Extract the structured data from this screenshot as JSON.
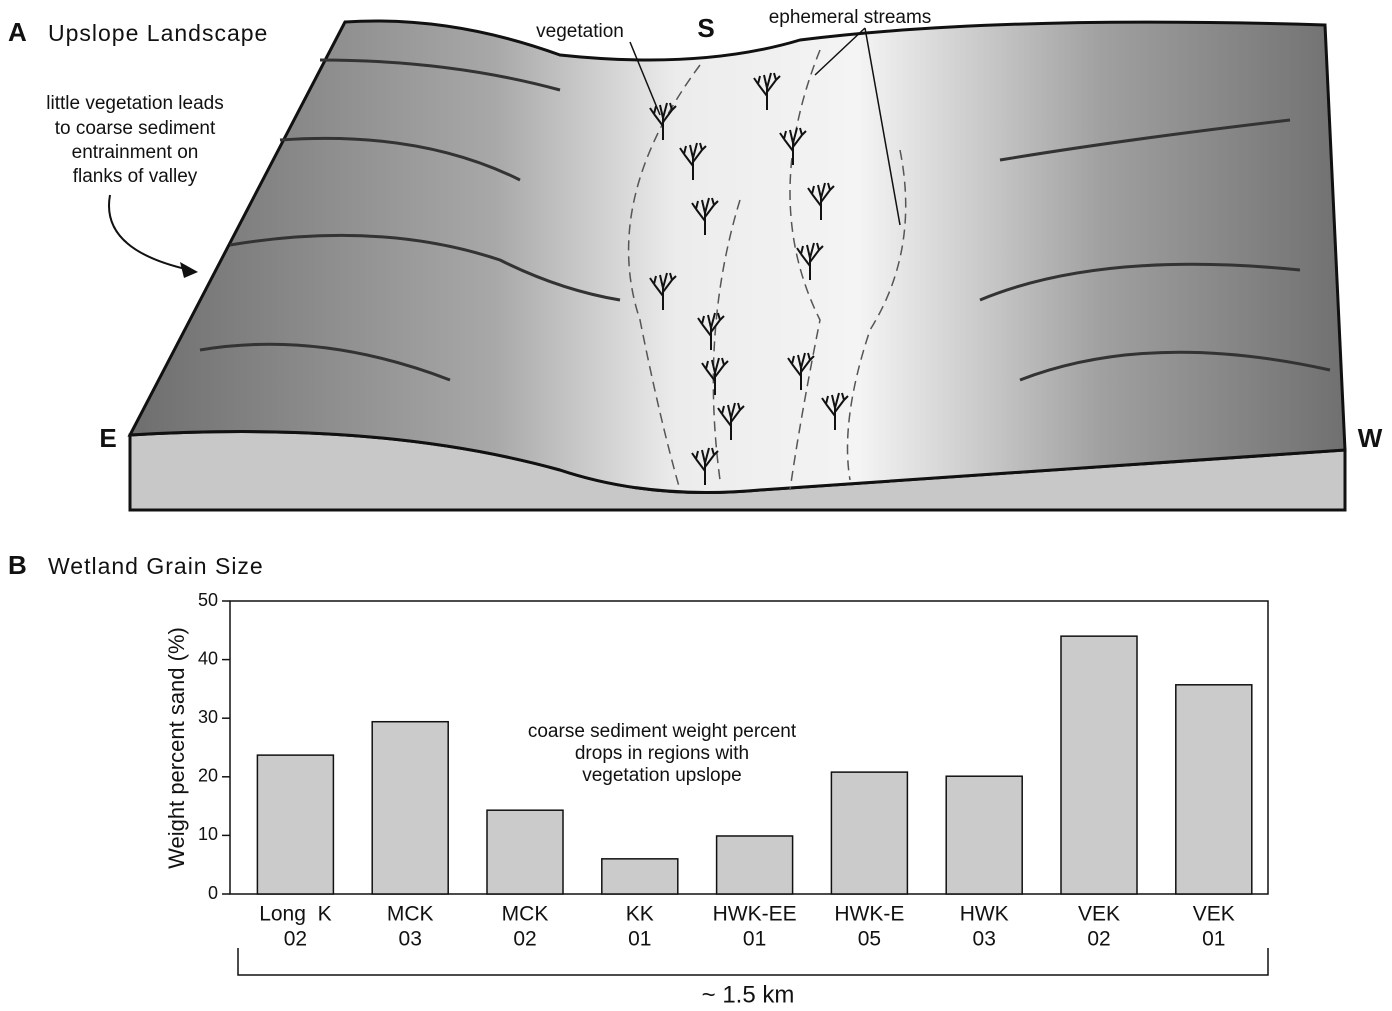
{
  "panel_a": {
    "label": "A",
    "title": "Upslope Landscape",
    "annotation_lines": [
      "little vegetation leads",
      "to coarse sediment",
      "entrainment on",
      "flanks of valley"
    ],
    "vegetation": "vegetation",
    "streams": "ephemeral streams",
    "south": "S",
    "east": "E",
    "west": "W"
  },
  "chart_data": {
    "type": "bar",
    "panel_label": "B",
    "title": "Wetland Grain Size",
    "y_label": "Weight percent sand (%)",
    "categories": [
      [
        "Long  K",
        "02"
      ],
      [
        "MCK",
        "03"
      ],
      [
        "MCK",
        "02"
      ],
      [
        "KK",
        "01"
      ],
      [
        "HWK-EE",
        "01"
      ],
      [
        "HWK-E",
        "05"
      ],
      [
        "HWK",
        "03"
      ],
      [
        "VEK",
        "02"
      ],
      [
        "VEK",
        "01"
      ]
    ],
    "values": [
      23.7,
      29.4,
      14.3,
      6.0,
      9.9,
      20.8,
      20.1,
      44.0,
      35.7
    ],
    "color": "#cbcbcb",
    "ylim": [
      0,
      50
    ],
    "yticks": [
      0,
      10,
      20,
      30,
      40,
      50
    ],
    "annotation": [
      "coarse sediment weight percent",
      "drops in regions with",
      "vegetation upslope"
    ],
    "scale_label": "~ 1.5 km"
  }
}
